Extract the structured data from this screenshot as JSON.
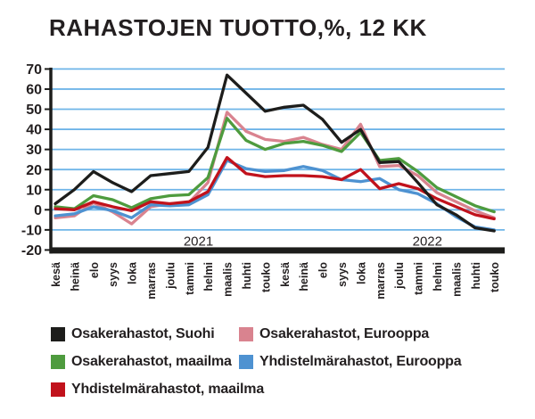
{
  "title": "RAHASTOJEN TUOTTO,%, 12 KK",
  "colors": {
    "background": "#ffffff",
    "text": "#231f20",
    "grid": "#6fb5e8",
    "axis": "#1d1d1b"
  },
  "chart_data": {
    "type": "line",
    "title": "RAHASTOJEN TUOTTO,%, 12 KK",
    "xlabel": "",
    "ylabel": "",
    "ylim": [
      -20,
      70
    ],
    "ytick_step": 10,
    "ytick_labels": [
      "70",
      "60",
      "50",
      "40",
      "30",
      "20",
      "10",
      "0",
      "-10",
      "-20"
    ],
    "grid": true,
    "legend_position": "bottom",
    "x_labels": [
      "kesä",
      "heinä",
      "elo",
      "syys",
      "loka",
      "marras",
      "joulu",
      "tammi",
      "helmi",
      "maalis",
      "huhti",
      "touko",
      "kesä",
      "heinä",
      "elo",
      "syys",
      "loka",
      "marras",
      "joulu",
      "tammi",
      "helmi",
      "maalis",
      "huhti",
      "touko"
    ],
    "year_labels": [
      {
        "text": "2021",
        "month_index": 7.5
      },
      {
        "text": "2022",
        "month_index": 19.5
      }
    ],
    "draw_order": [
      1,
      2,
      3,
      4,
      0
    ],
    "series": [
      {
        "name": "Osakerahastot, Suohi",
        "color": "#1d1d1b",
        "values": [
          3,
          10,
          19,
          13.5,
          9,
          17,
          18,
          19,
          31,
          67,
          58,
          49,
          51,
          52,
          45,
          33.5,
          40,
          23.5,
          24,
          13.5,
          2.5,
          -2.5,
          -9,
          -10.5
        ]
      },
      {
        "name": "Osakerahastot, Eurooppa",
        "color": "#d9838f",
        "values": [
          -4,
          -3,
          3.5,
          -1,
          -7,
          1.5,
          3,
          3.5,
          13.5,
          48.5,
          39,
          35,
          34,
          36,
          32.5,
          30,
          42.5,
          21.5,
          22,
          17,
          8.5,
          4,
          -0.5,
          -4
        ]
      },
      {
        "name": "Osakerahastot, maailma",
        "color": "#4e9b3e",
        "values": [
          1.5,
          0.5,
          7,
          5,
          1,
          5.5,
          7,
          7.5,
          16,
          45.5,
          34.5,
          30,
          33,
          34,
          32,
          29,
          38.5,
          24.5,
          25.5,
          19,
          11,
          6.5,
          2,
          -1
        ]
      },
      {
        "name": "Yhdistelmärahastot, Eurooppa",
        "color": "#4e92d1",
        "values": [
          -3,
          -2,
          1.5,
          -0.5,
          -4,
          2.5,
          2,
          2.5,
          7.5,
          24.5,
          20.5,
          19,
          19.5,
          21.5,
          19.5,
          15,
          14,
          15.5,
          10,
          8,
          3,
          -3.5,
          -8.5,
          -10
        ]
      },
      {
        "name": "Yhdistelmärahastot, maailma",
        "color": "#c1121c",
        "values": [
          0.5,
          0,
          4,
          1.5,
          -0.5,
          4,
          3,
          4,
          9,
          26,
          18,
          16.5,
          17,
          17,
          16.5,
          15,
          20,
          10.5,
          13,
          10.5,
          5.5,
          1.5,
          -2.5,
          -4.5
        ]
      }
    ]
  }
}
